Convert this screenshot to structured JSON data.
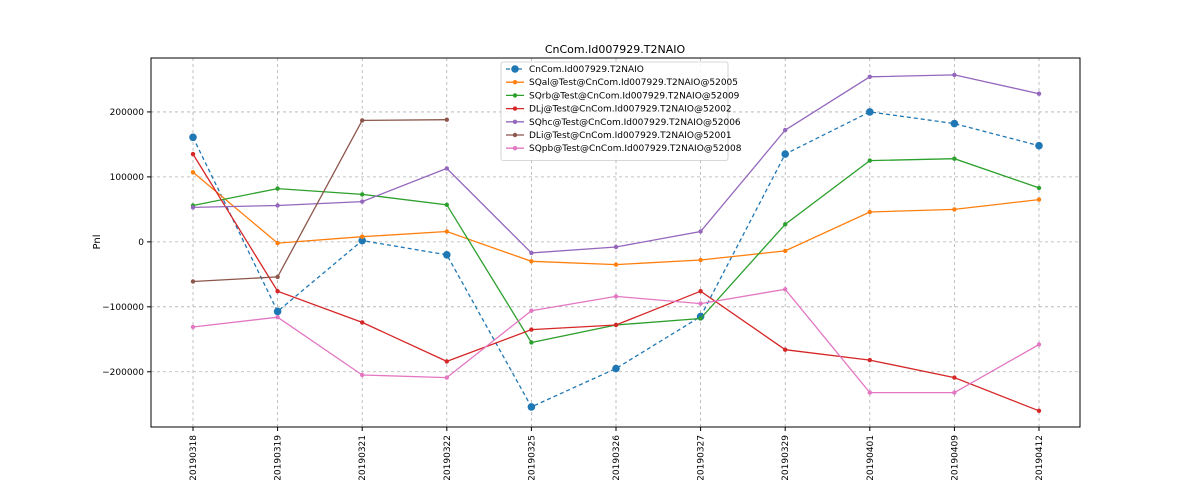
{
  "chart_data": {
    "type": "line",
    "title": "CnCom.Id007929.T2NAIO",
    "xlabel": "",
    "ylabel": "Pnl",
    "categories": [
      "20190318",
      "20190319",
      "20190321",
      "20190322",
      "20190325",
      "20190326",
      "20190327",
      "20190329",
      "20190401",
      "20190409",
      "20190412"
    ],
    "ylim": [
      -285000,
      283000
    ],
    "yticks": [
      -200000,
      -100000,
      0,
      100000,
      200000
    ],
    "ytick_labels": [
      "−200000",
      "−100000",
      "0",
      "100000",
      "200000"
    ],
    "grid": true,
    "legend_position": "top-center",
    "series": [
      {
        "name": "CnCom.Id007929.T2NAIO",
        "color": "#1f77b4",
        "dashed": true,
        "marker": "large",
        "values": [
          161000,
          -107000,
          2000,
          -20000,
          -254000,
          -195000,
          -115000,
          135000,
          200000,
          182000,
          148000
        ]
      },
      {
        "name": "SQal@Test@CnCom.Id007929.T2NAIO@52005",
        "color": "#ff7f0e",
        "dashed": false,
        "marker": "small",
        "values": [
          107000,
          -2000,
          8000,
          16000,
          -30000,
          -35000,
          -28000,
          -14000,
          46000,
          50000,
          65000
        ]
      },
      {
        "name": "SQrb@Test@CnCom.Id007929.T2NAIO@52009",
        "color": "#2ca02c",
        "dashed": false,
        "marker": "small",
        "values": [
          56000,
          82000,
          73000,
          57000,
          -155000,
          -128000,
          -118000,
          27000,
          125000,
          128000,
          83000
        ]
      },
      {
        "name": "DLj@Test@CnCom.Id007929.T2NAIO@52002",
        "color": "#d62728",
        "dashed": false,
        "marker": "small",
        "values": [
          135000,
          -76000,
          -124000,
          -184000,
          -135000,
          -128000,
          -76000,
          -166000,
          -182000,
          -209000,
          -260000
        ]
      },
      {
        "name": "SQhc@Test@CnCom.Id007929.T2NAIO@52006",
        "color": "#9467bd",
        "dashed": false,
        "marker": "small",
        "values": [
          53000,
          56000,
          62000,
          113000,
          -17000,
          -8000,
          16000,
          172000,
          254000,
          257000,
          228000
        ]
      },
      {
        "name": "DLi@Test@CnCom.Id007929.T2NAIO@52001",
        "color": "#8c564b",
        "dashed": false,
        "marker": "small",
        "values": [
          -61000,
          -54000,
          187000,
          188000,
          null,
          null,
          null,
          null,
          null,
          null,
          null
        ]
      },
      {
        "name": "SQpb@Test@CnCom.Id007929.T2NAIO@52008",
        "color": "#e377c2",
        "dashed": false,
        "marker": "small",
        "values": [
          -131000,
          -116000,
          -205000,
          -209000,
          -106000,
          -84000,
          -95000,
          -73000,
          -232000,
          -232000,
          -158000
        ]
      }
    ]
  }
}
